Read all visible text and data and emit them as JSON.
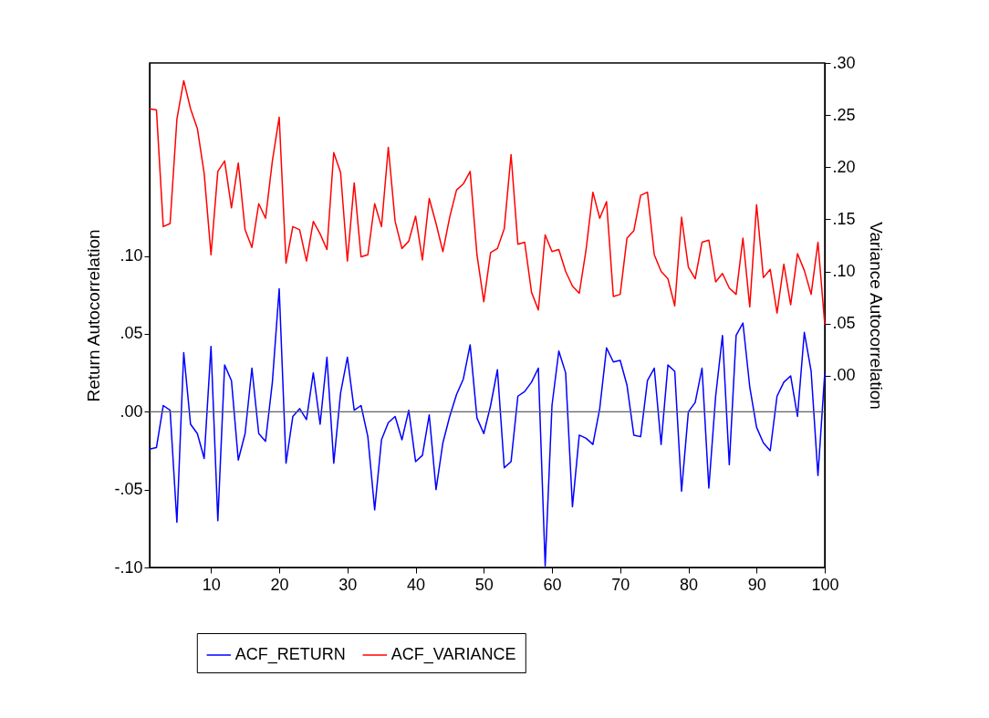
{
  "chart_data": {
    "type": "line",
    "xlabel": null,
    "ylabel": "Return Autocorrelation",
    "y2label": "Variance Autocorrelation",
    "x": [
      1,
      2,
      3,
      4,
      5,
      6,
      7,
      8,
      9,
      10,
      11,
      12,
      13,
      14,
      15,
      16,
      17,
      18,
      19,
      20,
      21,
      22,
      23,
      24,
      25,
      26,
      27,
      28,
      29,
      30,
      31,
      32,
      33,
      34,
      35,
      36,
      37,
      38,
      39,
      40,
      41,
      42,
      43,
      44,
      45,
      46,
      47,
      48,
      49,
      50,
      51,
      52,
      53,
      54,
      55,
      56,
      57,
      58,
      59,
      60,
      61,
      62,
      63,
      64,
      65,
      66,
      67,
      68,
      69,
      70,
      71,
      72,
      73,
      74,
      75,
      76,
      77,
      78,
      79,
      80,
      81,
      82,
      83,
      84,
      85,
      86,
      87,
      88,
      89,
      90,
      91,
      92,
      93,
      94,
      95,
      96,
      97,
      98,
      99,
      100
    ],
    "series": [
      {
        "name": "ACF_RETURN",
        "color": "#0000ff",
        "values": [
          -0.024,
          -0.023,
          0.004,
          0.001,
          -0.071,
          0.038,
          -0.008,
          -0.014,
          -0.03,
          0.042,
          -0.07,
          0.03,
          0.02,
          -0.031,
          -0.014,
          0.028,
          -0.014,
          -0.019,
          0.019,
          0.079,
          -0.033,
          -0.003,
          0.002,
          -0.005,
          0.025,
          -0.008,
          0.035,
          -0.033,
          0.012,
          0.035,
          0.001,
          0.004,
          -0.016,
          -0.063,
          -0.018,
          -0.007,
          -0.003,
          -0.018,
          0.001,
          -0.032,
          -0.028,
          -0.002,
          -0.05,
          -0.02,
          -0.003,
          0.011,
          0.021,
          0.043,
          -0.004,
          -0.014,
          0.004,
          0.027,
          -0.036,
          -0.032,
          0.01,
          0.013,
          0.019,
          0.028,
          -0.099,
          0.004,
          0.039,
          0.025,
          -0.061,
          -0.015,
          -0.017,
          -0.021,
          0.002,
          0.041,
          0.032,
          0.033,
          0.017,
          -0.015,
          -0.016,
          0.02,
          0.028,
          -0.021,
          0.03,
          0.026,
          -0.051,
          0.0,
          0.006,
          0.028,
          -0.049,
          0.01,
          0.049,
          -0.034,
          0.049,
          0.057,
          0.016,
          -0.01,
          -0.02,
          -0.025,
          0.01,
          0.019,
          0.023,
          -0.003,
          0.051,
          0.026,
          -0.041,
          0.025
        ]
      },
      {
        "name": "ACF_VARIANCE",
        "color": "#ff0000",
        "axis": "y2",
        "values": [
          0.256,
          0.255,
          0.143,
          0.146,
          0.246,
          0.283,
          0.256,
          0.237,
          0.194,
          0.116,
          0.196,
          0.206,
          0.161,
          0.204,
          0.14,
          0.123,
          0.165,
          0.151,
          0.206,
          0.248,
          0.108,
          0.143,
          0.14,
          0.11,
          0.148,
          0.136,
          0.121,
          0.214,
          0.195,
          0.11,
          0.185,
          0.114,
          0.116,
          0.165,
          0.143,
          0.219,
          0.148,
          0.122,
          0.129,
          0.153,
          0.111,
          0.17,
          0.146,
          0.119,
          0.152,
          0.178,
          0.184,
          0.196,
          0.116,
          0.071,
          0.118,
          0.122,
          0.141,
          0.212,
          0.126,
          0.128,
          0.08,
          0.063,
          0.135,
          0.119,
          0.121,
          0.1,
          0.086,
          0.079,
          0.121,
          0.176,
          0.151,
          0.167,
          0.076,
          0.078,
          0.132,
          0.139,
          0.173,
          0.176,
          0.116,
          0.1,
          0.093,
          0.067,
          0.152,
          0.104,
          0.093,
          0.128,
          0.13,
          0.09,
          0.098,
          0.084,
          0.078,
          0.132,
          0.066,
          0.164,
          0.094,
          0.102,
          0.06,
          0.107,
          0.068,
          0.117,
          0.101,
          0.078,
          0.128,
          0.049
        ]
      }
    ],
    "xlim": [
      1,
      100
    ],
    "xticks": [
      10,
      20,
      30,
      40,
      50,
      60,
      70,
      80,
      90,
      100
    ],
    "ylim": [
      -0.1,
      0.224
    ],
    "yticks": [
      {
        "value": -0.1,
        "label": "-.10"
      },
      {
        "value": -0.05,
        "label": "-.05"
      },
      {
        "value": 0,
        "label": ".00"
      },
      {
        "value": 0.05,
        "label": ".05"
      },
      {
        "value": 0.1,
        "label": ".10"
      }
    ],
    "y2lim": [
      -0.184,
      0.3
    ],
    "y2ticks": [
      {
        "value": 0,
        "label": ".00"
      },
      {
        "value": 0.05,
        "label": ".05"
      },
      {
        "value": 0.1,
        "label": ".10"
      },
      {
        "value": 0.15,
        "label": ".15"
      },
      {
        "value": 0.2,
        "label": ".20"
      },
      {
        "value": 0.25,
        "label": ".25"
      },
      {
        "value": 0.3,
        "label": ".30"
      }
    ],
    "ref_lines": [
      {
        "axis": "y",
        "value": 0,
        "color": "#606060"
      }
    ],
    "grid": false,
    "legend": "bottom",
    "line_style": "solid"
  }
}
